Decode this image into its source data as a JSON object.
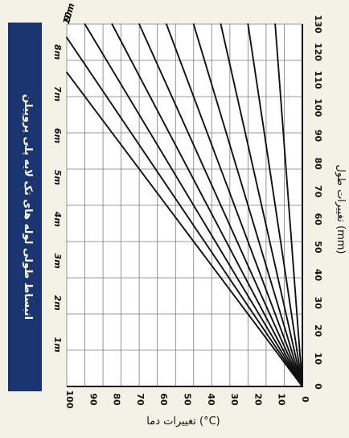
{
  "chart_data": {
    "type": "line",
    "title": "انبساط طولی لوله های تک لایه پلی پروپیلن",
    "xlabel": "تغییرات دما (°C)",
    "ylabel": "تغییرات طول (mm)",
    "xlim": [
      0,
      100
    ],
    "ylim": [
      0,
      130
    ],
    "x_ticks": [
      0,
      10,
      20,
      30,
      40,
      50,
      60,
      70,
      80,
      90,
      100
    ],
    "y_ticks": [
      0,
      10,
      20,
      30,
      40,
      50,
      60,
      70,
      80,
      90,
      100,
      110,
      120,
      130
    ],
    "grid": true,
    "series": [
      {
        "name": "1m",
        "x": [
          0,
          100
        ],
        "y": [
          0,
          15
        ]
      },
      {
        "name": "2m",
        "x": [
          0,
          100
        ],
        "y": [
          0,
          30
        ]
      },
      {
        "name": "3m",
        "x": [
          0,
          100
        ],
        "y": [
          0,
          45
        ]
      },
      {
        "name": "4m",
        "x": [
          0,
          100
        ],
        "y": [
          0,
          60
        ]
      },
      {
        "name": "5m",
        "x": [
          0,
          100
        ],
        "y": [
          0,
          75
        ]
      },
      {
        "name": "6m",
        "x": [
          0,
          100
        ],
        "y": [
          0,
          90
        ]
      },
      {
        "name": "7m",
        "x": [
          0,
          100
        ],
        "y": [
          0,
          105
        ]
      },
      {
        "name": "8m",
        "x": [
          0,
          100
        ],
        "y": [
          0,
          120
        ]
      },
      {
        "name": "9m",
        "x": [
          0,
          96.3
        ],
        "y": [
          0,
          130
        ]
      },
      {
        "name": "10m",
        "x": [
          0,
          86.7
        ],
        "y": [
          0,
          130
        ]
      }
    ],
    "colors": {
      "background": "#f4f1e6",
      "plot_background": "#ffffff",
      "grid": "#7a7a7a",
      "line": "#111111",
      "title_box": "#1a3570",
      "title_text": "#ffffff"
    }
  }
}
